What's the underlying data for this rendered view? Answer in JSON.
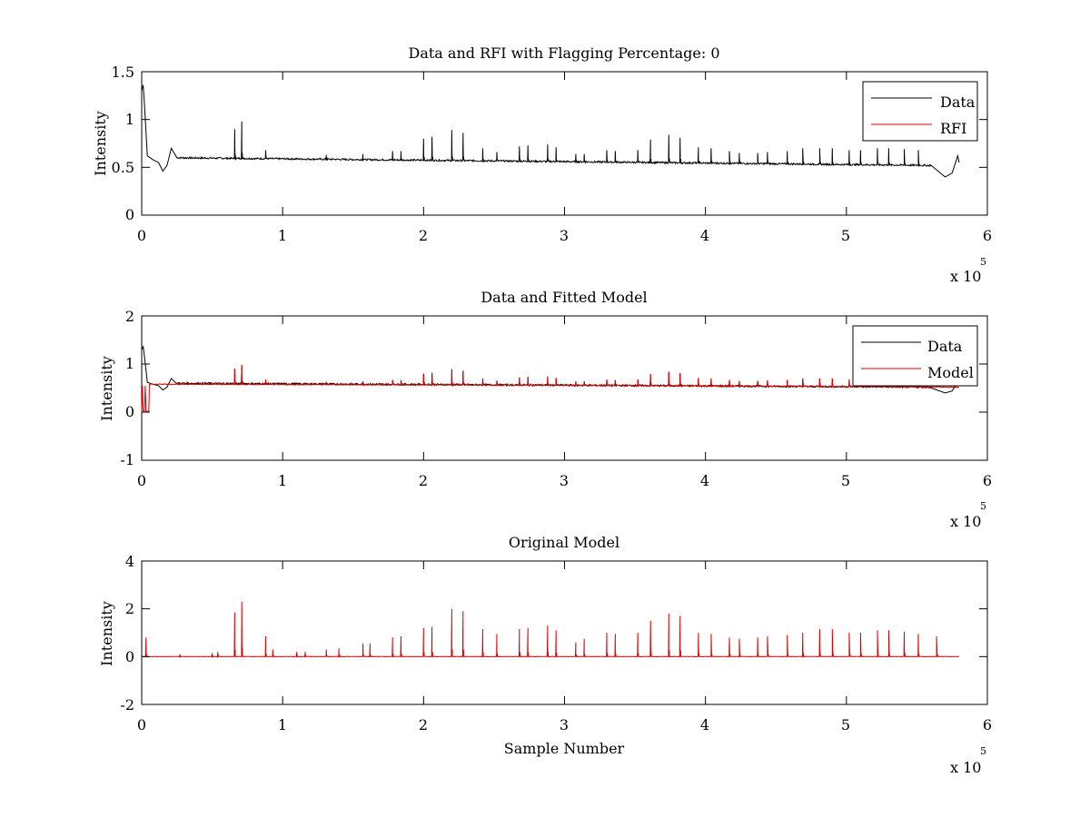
{
  "figure": {
    "background": "#ffffff"
  },
  "chart_data": [
    {
      "type": "line",
      "title": "Data and RFI with Flagging Percentage: 0",
      "xlabel": "",
      "ylabel": "Intensity",
      "xlim": [
        0,
        6
      ],
      "ylim": [
        0,
        1.5
      ],
      "x_ticks": [
        "0",
        "1",
        "2",
        "3",
        "4",
        "5",
        "6"
      ],
      "y_ticks": [
        "0",
        "0.5",
        "1",
        "1.5"
      ],
      "x_multiplier": {
        "base": "x 10",
        "exponent": "5"
      },
      "legend": {
        "position": "top-right",
        "entries": [
          "Data",
          "RFI"
        ]
      },
      "series": [
        {
          "name": "Data",
          "color": "#000000",
          "kind": "data",
          "shape": [
            [
              0,
              1.3
            ],
            [
              0.01,
              1.36
            ],
            [
              0.02,
              1.15
            ],
            [
              0.04,
              0.62
            ],
            [
              0.08,
              0.58
            ],
            [
              0.12,
              0.55
            ],
            [
              0.15,
              0.46
            ],
            [
              0.18,
              0.52
            ],
            [
              0.21,
              0.7
            ],
            [
              0.25,
              0.6
            ],
            [
              3.0,
              0.56
            ],
            [
              5.6,
              0.52
            ],
            [
              5.7,
              0.4
            ],
            [
              5.75,
              0.44
            ],
            [
              5.79,
              0.62
            ],
            [
              5.8,
              0.55
            ]
          ],
          "baseline": [
            [
              0.25,
              0.6
            ],
            [
              3.0,
              0.56
            ],
            [
              5.6,
              0.52
            ]
          ],
          "spikes": [
            [
              0.66,
              0.9
            ],
            [
              0.71,
              0.98
            ],
            [
              0.88,
              0.68
            ],
            [
              1.31,
              0.63
            ],
            [
              1.57,
              0.64
            ],
            [
              1.78,
              0.67
            ],
            [
              1.84,
              0.67
            ],
            [
              2.0,
              0.8
            ],
            [
              2.06,
              0.82
            ],
            [
              2.2,
              0.89
            ],
            [
              2.28,
              0.86
            ],
            [
              2.42,
              0.7
            ],
            [
              2.52,
              0.66
            ],
            [
              2.68,
              0.72
            ],
            [
              2.74,
              0.73
            ],
            [
              2.88,
              0.74
            ],
            [
              2.94,
              0.71
            ],
            [
              3.08,
              0.64
            ],
            [
              3.14,
              0.64
            ],
            [
              3.3,
              0.68
            ],
            [
              3.36,
              0.67
            ],
            [
              3.52,
              0.68
            ],
            [
              3.61,
              0.79
            ],
            [
              3.74,
              0.84
            ],
            [
              3.82,
              0.81
            ],
            [
              3.95,
              0.71
            ],
            [
              4.04,
              0.7
            ],
            [
              4.17,
              0.67
            ],
            [
              4.24,
              0.65
            ],
            [
              4.37,
              0.65
            ],
            [
              4.44,
              0.66
            ],
            [
              4.58,
              0.67
            ],
            [
              4.69,
              0.7
            ],
            [
              4.81,
              0.7
            ],
            [
              4.9,
              0.7
            ],
            [
              5.02,
              0.68
            ],
            [
              5.1,
              0.68
            ],
            [
              5.22,
              0.7
            ],
            [
              5.3,
              0.7
            ],
            [
              5.41,
              0.69
            ],
            [
              5.51,
              0.68
            ],
            [
              5.64,
              0.66
            ]
          ]
        },
        {
          "name": "RFI",
          "color": "#e00000",
          "kind": "empty"
        }
      ]
    },
    {
      "type": "line",
      "title": "Data and Fitted Model",
      "xlabel": "",
      "ylabel": "Intensity",
      "xlim": [
        0,
        6
      ],
      "ylim": [
        -1,
        2
      ],
      "x_ticks": [
        "0",
        "1",
        "2",
        "3",
        "4",
        "5",
        "6"
      ],
      "y_ticks": [
        "-1",
        "0",
        "1",
        "2"
      ],
      "x_multiplier": {
        "base": "x 10",
        "exponent": "5"
      },
      "legend": {
        "position": "top-right",
        "entries": [
          "Data",
          "Model"
        ]
      },
      "series": [
        {
          "name": "Data",
          "color": "#000000",
          "kind": "data",
          "shape": [
            [
              0,
              1.3
            ],
            [
              0.01,
              1.36
            ],
            [
              0.02,
              1.15
            ],
            [
              0.04,
              0.62
            ],
            [
              0.08,
              0.58
            ],
            [
              0.12,
              0.55
            ],
            [
              0.15,
              0.46
            ],
            [
              0.18,
              0.52
            ],
            [
              0.21,
              0.7
            ],
            [
              0.25,
              0.6
            ],
            [
              3.0,
              0.56
            ],
            [
              5.6,
              0.52
            ],
            [
              5.7,
              0.4
            ],
            [
              5.75,
              0.44
            ],
            [
              5.79,
              0.62
            ],
            [
              5.8,
              0.55
            ]
          ],
          "baseline": [
            [
              0.25,
              0.6
            ],
            [
              3.0,
              0.56
            ],
            [
              5.6,
              0.52
            ]
          ],
          "spikes": [
            [
              0.66,
              0.9
            ],
            [
              0.71,
              0.98
            ],
            [
              0.88,
              0.68
            ],
            [
              1.31,
              0.63
            ],
            [
              1.57,
              0.64
            ],
            [
              1.78,
              0.67
            ],
            [
              1.84,
              0.67
            ],
            [
              2.0,
              0.8
            ],
            [
              2.06,
              0.82
            ],
            [
              2.2,
              0.89
            ],
            [
              2.28,
              0.86
            ],
            [
              2.42,
              0.7
            ],
            [
              2.52,
              0.66
            ],
            [
              2.68,
              0.72
            ],
            [
              2.74,
              0.73
            ],
            [
              2.88,
              0.74
            ],
            [
              2.94,
              0.71
            ],
            [
              3.08,
              0.64
            ],
            [
              3.14,
              0.64
            ],
            [
              3.3,
              0.68
            ],
            [
              3.36,
              0.67
            ],
            [
              3.52,
              0.68
            ],
            [
              3.61,
              0.79
            ],
            [
              3.74,
              0.84
            ],
            [
              3.82,
              0.81
            ],
            [
              3.95,
              0.71
            ],
            [
              4.04,
              0.7
            ],
            [
              4.17,
              0.67
            ],
            [
              4.24,
              0.65
            ],
            [
              4.37,
              0.65
            ],
            [
              4.44,
              0.66
            ],
            [
              4.58,
              0.67
            ],
            [
              4.69,
              0.7
            ],
            [
              4.81,
              0.7
            ],
            [
              4.9,
              0.7
            ],
            [
              5.02,
              0.68
            ],
            [
              5.1,
              0.68
            ],
            [
              5.22,
              0.7
            ],
            [
              5.3,
              0.7
            ],
            [
              5.41,
              0.69
            ],
            [
              5.51,
              0.68
            ],
            [
              5.64,
              0.66
            ]
          ]
        },
        {
          "name": "Model",
          "color": "#e00000",
          "kind": "model",
          "shape": [
            [
              0,
              0.0
            ],
            [
              0.005,
              0.55
            ],
            [
              0.01,
              0.02
            ],
            [
              0.02,
              0.02
            ],
            [
              0.025,
              0.55
            ],
            [
              0.03,
              0.02
            ],
            [
              0.05,
              0.02
            ],
            [
              0.055,
              0.58
            ],
            [
              0.25,
              0.58
            ],
            [
              3.0,
              0.56
            ],
            [
              5.8,
              0.52
            ]
          ],
          "baseline": [
            [
              0.055,
              0.58
            ],
            [
              3.0,
              0.56
            ],
            [
              5.8,
              0.52
            ]
          ],
          "spikes": [
            [
              0.66,
              0.9
            ],
            [
              0.71,
              0.98
            ],
            [
              0.88,
              0.68
            ],
            [
              1.31,
              0.63
            ],
            [
              1.57,
              0.64
            ],
            [
              1.78,
              0.67
            ],
            [
              1.84,
              0.67
            ],
            [
              2.0,
              0.8
            ],
            [
              2.06,
              0.82
            ],
            [
              2.2,
              0.89
            ],
            [
              2.28,
              0.86
            ],
            [
              2.42,
              0.7
            ],
            [
              2.52,
              0.66
            ],
            [
              2.68,
              0.72
            ],
            [
              2.74,
              0.73
            ],
            [
              2.88,
              0.74
            ],
            [
              2.94,
              0.71
            ],
            [
              3.08,
              0.64
            ],
            [
              3.14,
              0.64
            ],
            [
              3.3,
              0.68
            ],
            [
              3.36,
              0.67
            ],
            [
              3.52,
              0.68
            ],
            [
              3.61,
              0.79
            ],
            [
              3.74,
              0.84
            ],
            [
              3.82,
              0.81
            ],
            [
              3.95,
              0.71
            ],
            [
              4.04,
              0.7
            ],
            [
              4.17,
              0.67
            ],
            [
              4.24,
              0.65
            ],
            [
              4.37,
              0.65
            ],
            [
              4.44,
              0.66
            ],
            [
              4.58,
              0.67
            ],
            [
              4.69,
              0.7
            ],
            [
              4.81,
              0.7
            ],
            [
              4.9,
              0.7
            ],
            [
              5.02,
              0.68
            ],
            [
              5.1,
              0.68
            ],
            [
              5.22,
              0.7
            ],
            [
              5.3,
              0.7
            ],
            [
              5.41,
              0.69
            ],
            [
              5.51,
              0.68
            ],
            [
              5.64,
              0.66
            ]
          ]
        }
      ]
    },
    {
      "type": "line",
      "title": "Original Model",
      "xlabel": "Sample Number",
      "ylabel": "Intensity",
      "xlim": [
        0,
        6
      ],
      "ylim": [
        -2,
        4
      ],
      "x_ticks": [
        "0",
        "1",
        "2",
        "3",
        "4",
        "5",
        "6"
      ],
      "y_ticks": [
        "-2",
        "0",
        "2",
        "4"
      ],
      "x_multiplier": {
        "base": "x 10",
        "exponent": "5"
      },
      "legend": null,
      "series": [
        {
          "color": "#e00000",
          "kind": "original",
          "shape": [
            [
              0,
              0.0
            ],
            [
              5.8,
              0.0
            ]
          ],
          "baseline": [
            [
              0,
              0.0
            ],
            [
              5.8,
              0.0
            ]
          ],
          "spikes": [
            [
              0.03,
              0.8
            ],
            [
              0.27,
              0.1
            ],
            [
              0.5,
              0.15
            ],
            [
              0.54,
              0.2
            ],
            [
              0.66,
              1.85
            ],
            [
              0.71,
              2.3
            ],
            [
              0.88,
              0.85
            ],
            [
              0.93,
              0.3
            ],
            [
              1.1,
              0.2
            ],
            [
              1.16,
              0.2
            ],
            [
              1.31,
              0.3
            ],
            [
              1.4,
              0.35
            ],
            [
              1.57,
              0.55
            ],
            [
              1.62,
              0.55
            ],
            [
              1.78,
              0.8
            ],
            [
              1.84,
              0.85
            ],
            [
              2.0,
              1.2
            ],
            [
              2.06,
              1.25
            ],
            [
              2.2,
              2.0
            ],
            [
              2.28,
              1.9
            ],
            [
              2.42,
              1.15
            ],
            [
              2.52,
              0.95
            ],
            [
              2.68,
              1.15
            ],
            [
              2.74,
              1.2
            ],
            [
              2.88,
              1.3
            ],
            [
              2.94,
              1.1
            ],
            [
              3.08,
              0.6
            ],
            [
              3.14,
              0.75
            ],
            [
              3.3,
              1.0
            ],
            [
              3.36,
              0.95
            ],
            [
              3.52,
              1.0
            ],
            [
              3.61,
              1.5
            ],
            [
              3.74,
              1.8
            ],
            [
              3.82,
              1.7
            ],
            [
              3.95,
              1.0
            ],
            [
              4.04,
              0.95
            ],
            [
              4.17,
              0.8
            ],
            [
              4.24,
              0.75
            ],
            [
              4.37,
              0.8
            ],
            [
              4.44,
              0.85
            ],
            [
              4.58,
              0.9
            ],
            [
              4.69,
              1.0
            ],
            [
              4.81,
              1.15
            ],
            [
              4.9,
              1.15
            ],
            [
              5.02,
              1.0
            ],
            [
              5.1,
              1.0
            ],
            [
              5.22,
              1.1
            ],
            [
              5.3,
              1.1
            ],
            [
              5.41,
              1.05
            ],
            [
              5.51,
              0.95
            ],
            [
              5.64,
              0.85
            ]
          ]
        }
      ]
    }
  ]
}
